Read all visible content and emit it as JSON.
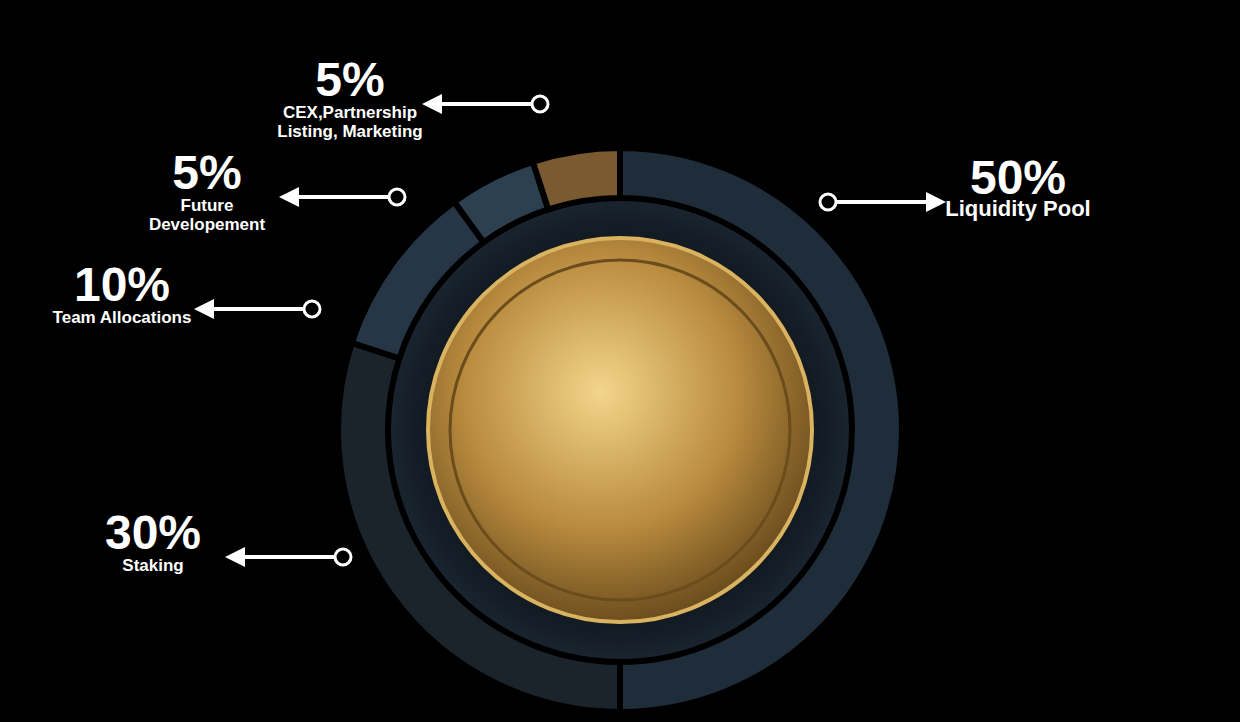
{
  "chart_data": {
    "type": "pie",
    "categories": [
      "Liquidity Pool",
      "Staking",
      "Team Allocations",
      "Future Developement",
      "CEX,Partnership Listing, Marketing"
    ],
    "values": [
      50,
      30,
      10,
      5,
      5
    ],
    "value_labels": [
      "50%",
      "30%",
      "10%",
      "5%",
      "5%"
    ],
    "colors": [
      "#1f2d3a",
      "#1b232b",
      "#263646",
      "#2d4050",
      "#7a5a30"
    ],
    "data_labels": true
  }
}
